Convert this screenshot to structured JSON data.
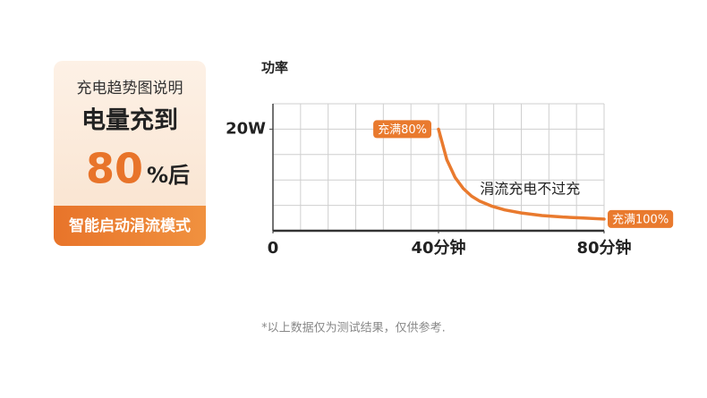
{
  "card": {
    "subtitle": "充电趋势图说明",
    "headline": "电量充到",
    "big_number": "80",
    "big_suffix": "%后",
    "band": "智能启动涓流模式"
  },
  "chart_data": {
    "type": "line",
    "y_axis_title": "功率",
    "x": [
      40,
      42,
      44,
      46,
      48,
      50,
      53,
      56,
      60,
      65,
      70,
      75,
      80
    ],
    "series": [
      {
        "color": "#e97a2e",
        "values": [
          20,
          14,
          10.5,
          8.3,
          6.8,
          5.8,
          4.8,
          4.1,
          3.5,
          3,
          2.7,
          2.5,
          2.3
        ]
      }
    ],
    "xlim": [
      0,
      80
    ],
    "xticks": [
      0,
      {
        "value": 40,
        "label": "40分钟"
      },
      {
        "value": 80,
        "label": "80分钟"
      }
    ],
    "ylim": [
      0,
      25
    ],
    "yticks": [
      {
        "value": 20,
        "label": "20W"
      }
    ],
    "grid": true,
    "annotations": [
      {
        "text": "充满80%",
        "x": 40,
        "y": 20,
        "style": "badge",
        "side": "left"
      },
      {
        "text": "充满100%",
        "x": 80,
        "y": 2.3,
        "style": "badge",
        "side": "right"
      },
      {
        "text": "涓流充电不过充",
        "x": 50,
        "y": 8.1,
        "style": "text",
        "side": "right"
      }
    ]
  },
  "footnote": "*以上数据仅为测试结果，仅供参考."
}
